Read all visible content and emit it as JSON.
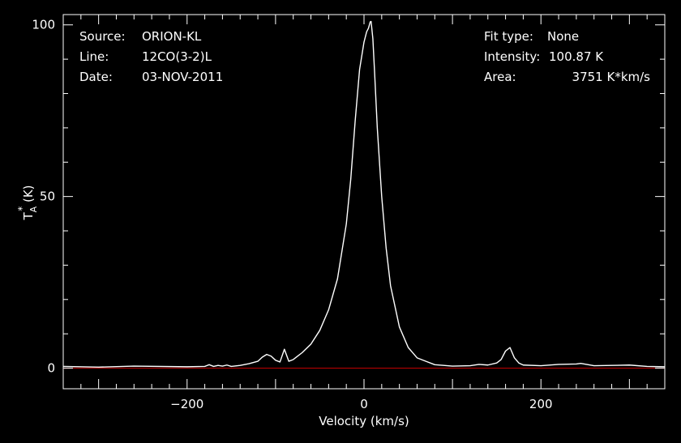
{
  "colors": {
    "background": "#000000",
    "foreground": "#ffffff",
    "baseline": "#cc0000"
  },
  "info_left": [
    {
      "label": "Source:",
      "value": "ORION-KL"
    },
    {
      "label": "Line:",
      "value": "12CO(3-2)L"
    },
    {
      "label": "Date:",
      "value": "03-NOV-2011"
    }
  ],
  "info_right": [
    {
      "label": "Fit type:",
      "value": "None"
    },
    {
      "label": "Intensity:",
      "value": "100.87 K"
    },
    {
      "label": "Area:",
      "value": "3751 K*km/s"
    }
  ],
  "chart_data": {
    "type": "line",
    "xlabel": "Velocity (km/s)",
    "ylabel": "T_A^* (K)",
    "ylabel_parts": {
      "main": "T",
      "sub": "A",
      "sup": "*",
      "unit": " (K)"
    },
    "xlim": [
      -340,
      340
    ],
    "ylim": [
      -6,
      103
    ],
    "xticks": [
      -200,
      0,
      200
    ],
    "yticks": [
      0,
      50,
      100
    ],
    "xtick_labels": [
      "−200",
      "0",
      "200"
    ],
    "ytick_labels": [
      "0",
      "50",
      "100"
    ],
    "baseline_y": 0,
    "grid": false,
    "legend": "none",
    "series": [
      {
        "x": [
          -340,
          -300,
          -260,
          -200,
          -180,
          -175,
          -170,
          -165,
          -160,
          -155,
          -150,
          -140,
          -130,
          -120,
          -115,
          -110,
          -105,
          -100,
          -95,
          -90,
          -85,
          -80,
          -75,
          -70,
          -60,
          -50,
          -40,
          -30,
          -20,
          -15,
          -10,
          -5,
          0,
          3,
          5,
          7,
          8,
          10,
          12,
          15,
          20,
          25,
          30,
          40,
          50,
          60,
          70,
          80,
          100,
          120,
          130,
          140,
          150,
          155,
          160,
          165,
          170,
          175,
          180,
          200,
          220,
          240,
          245,
          260,
          280,
          300,
          320,
          340
        ],
        "y": [
          0.5,
          0.3,
          0.6,
          0.4,
          0.5,
          1.0,
          0.5,
          0.8,
          0.6,
          0.9,
          0.5,
          0.8,
          1.3,
          2.0,
          3.2,
          4.0,
          3.5,
          2.3,
          1.8,
          5.5,
          2.0,
          2.5,
          3.5,
          4.5,
          7.0,
          11.0,
          17.0,
          26.0,
          42.0,
          55.0,
          72.0,
          87.0,
          95.0,
          98.0,
          99.0,
          100.87,
          101.0,
          96.0,
          86.0,
          70.0,
          50.0,
          35.0,
          24.0,
          12.0,
          6.0,
          3.0,
          2.0,
          1.0,
          0.6,
          0.7,
          1.1,
          0.9,
          1.5,
          2.5,
          5.0,
          6.0,
          3.0,
          1.5,
          0.9,
          0.7,
          1.1,
          1.2,
          1.4,
          0.7,
          0.8,
          0.9,
          0.5,
          0.4
        ]
      }
    ]
  }
}
